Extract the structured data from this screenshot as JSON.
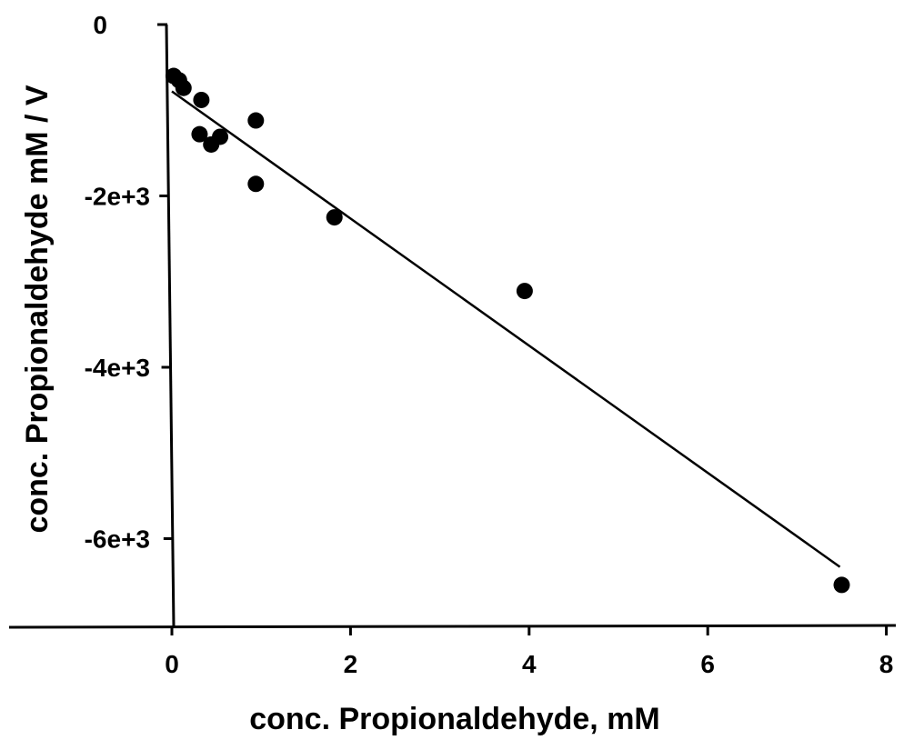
{
  "chart_data": {
    "type": "scatter",
    "title": "",
    "xlabel": "conc. Propionaldehyde, mM",
    "ylabel": "conc. Propionaldehyde mM / V",
    "xlim": [
      -0.1,
      8
    ],
    "ylim": [
      -7000,
      0
    ],
    "x_ticks": [
      0,
      2,
      4,
      6,
      8
    ],
    "y_ticks": [
      0,
      -2000,
      -4000,
      -6000
    ],
    "x_tick_labels": [
      "0",
      "2",
      "4",
      "6",
      "8"
    ],
    "y_tick_labels": [
      "0",
      "-2e+3",
      "-4e+3",
      "-6e+3"
    ],
    "grid": false,
    "legend": "none",
    "series": [
      {
        "points": [
          {
            "x": 0.02,
            "y": -600
          },
          {
            "x": 0.08,
            "y": -650
          },
          {
            "x": 0.13,
            "y": -740
          },
          {
            "x": 0.33,
            "y": -880
          },
          {
            "x": 0.31,
            "y": -1280
          },
          {
            "x": 0.44,
            "y": -1400
          },
          {
            "x": 0.54,
            "y": -1310
          },
          {
            "x": 0.94,
            "y": -1120
          },
          {
            "x": 0.94,
            "y": -1860
          },
          {
            "x": 1.82,
            "y": -2250
          },
          {
            "x": 3.95,
            "y": -3110
          },
          {
            "x": 7.5,
            "y": -6540
          }
        ]
      }
    ],
    "trendline": {
      "type": "linear",
      "x_range": [
        0,
        7.48
      ],
      "y_start": -780,
      "y_end": -6330
    }
  }
}
